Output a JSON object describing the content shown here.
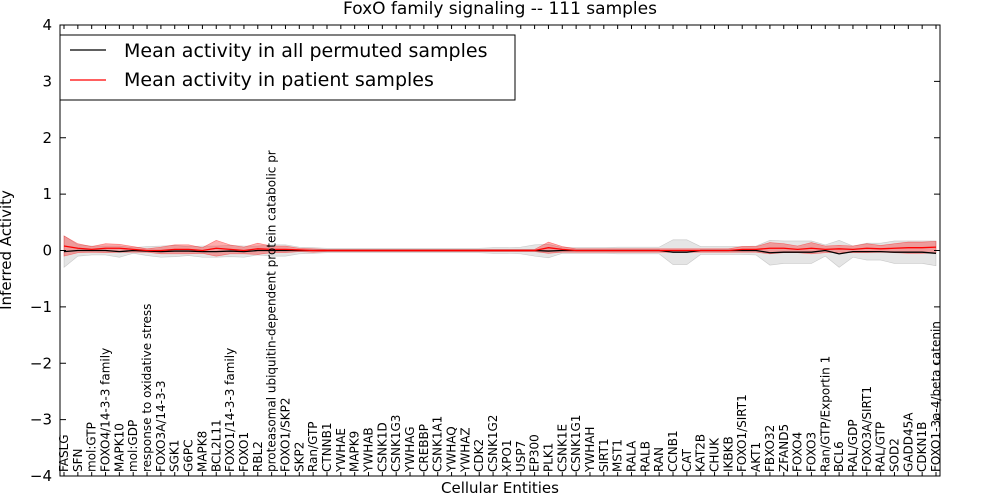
{
  "chart_data": {
    "type": "line",
    "title": "FoxO family signaling -- 111 samples",
    "xlabel": "Cellular Entities",
    "ylabel": "Inferred Activity",
    "ylim": [
      -4,
      4
    ],
    "yticks": [
      "−4",
      "−3",
      "−2",
      "−1",
      "0",
      "1",
      "2",
      "3",
      "4"
    ],
    "grid": false,
    "legend_position": "top-left",
    "categories": [
      "FASLG",
      "SFN",
      "mol:GTP",
      "FOXO4/14-3-3 family",
      "MAPK10",
      "mol:GDP",
      "response to oxidative stress",
      "FOXO3A/14-3-3",
      "SGK1",
      "G6PC",
      "MAPK8",
      "BCL2L11",
      "FOXO1/14-3-3 family",
      "FOXO1",
      "RBL2",
      "proteasomal ubiquitin-dependent protein catabolic pr",
      "FOXO1/SKP2",
      "SKP2",
      "Ran/GTP",
      "CTNNB1",
      "YWHAE",
      "MAPK9",
      "YWHAB",
      "CSNK1D",
      "CSNK1G3",
      "YWHAG",
      "CREBBP",
      "CSNK1A1",
      "YWHAQ",
      "YWHAZ",
      "CDK2",
      "CSNK1G2",
      "XPO1",
      "USP7",
      "EP300",
      "PLK1",
      "CSNK1E",
      "CSNK1G1",
      "YWHAH",
      "SIRT1",
      "MST1",
      "RALA",
      "RALB",
      "RAN",
      "CCNB1",
      "CAT",
      "KAT2B",
      "CHUK",
      "IKBKB",
      "FOXO1/SIRT1",
      "AKT1",
      "FBXO32",
      "ZFAND5",
      "FOXO4",
      "FOXO3",
      "Ran/GTP/Exportin 1",
      "BCL6",
      "RAL/GDP",
      "FOXO3A/SIRT1",
      "RAL/GTP",
      "SOD2",
      "GADD45A",
      "CDKN1B",
      "FOXO1-3a-4/beta catenin"
    ],
    "series": [
      {
        "name": "Mean activity in all permuted samples",
        "color": "#000000",
        "band_color": "#999999",
        "values": [
          -0.02,
          0.0,
          0.0,
          0.0,
          -0.02,
          0.0,
          -0.01,
          -0.02,
          -0.01,
          -0.01,
          -0.02,
          -0.02,
          -0.01,
          -0.02,
          0.0,
          0.0,
          0.0,
          0.0,
          0.0,
          0.0,
          0.0,
          0.0,
          0.0,
          0.0,
          0.0,
          0.0,
          0.0,
          0.0,
          0.0,
          0.0,
          0.0,
          0.0,
          0.0,
          0.0,
          0.0,
          -0.01,
          0.0,
          0.0,
          0.0,
          0.0,
          0.0,
          0.0,
          0.0,
          0.0,
          -0.03,
          -0.03,
          0.0,
          0.0,
          0.0,
          0.0,
          0.0,
          -0.04,
          -0.03,
          -0.03,
          -0.03,
          0.0,
          -0.06,
          -0.02,
          -0.02,
          -0.02,
          -0.03,
          -0.03,
          -0.03,
          -0.05
        ],
        "band_half_width": [
          0.28,
          0.1,
          0.08,
          0.08,
          0.1,
          0.05,
          0.08,
          0.1,
          0.1,
          0.08,
          0.1,
          0.1,
          0.1,
          0.1,
          0.08,
          0.1,
          0.1,
          0.06,
          0.05,
          0.04,
          0.04,
          0.04,
          0.04,
          0.04,
          0.04,
          0.04,
          0.04,
          0.04,
          0.04,
          0.04,
          0.04,
          0.05,
          0.05,
          0.06,
          0.1,
          0.12,
          0.05,
          0.05,
          0.05,
          0.05,
          0.06,
          0.06,
          0.06,
          0.06,
          0.22,
          0.22,
          0.07,
          0.07,
          0.07,
          0.07,
          0.08,
          0.22,
          0.2,
          0.2,
          0.2,
          0.1,
          0.24,
          0.1,
          0.15,
          0.15,
          0.2,
          0.2,
          0.2,
          0.22
        ]
      },
      {
        "name": "Mean activity in patient samples",
        "color": "#ff0000",
        "band_color": "#ff0000",
        "values": [
          0.08,
          0.04,
          0.02,
          0.04,
          0.04,
          0.02,
          0.0,
          0.0,
          0.02,
          0.02,
          0.0,
          0.04,
          0.02,
          0.0,
          0.03,
          0.02,
          0.02,
          0.01,
          0.0,
          0.0,
          0.0,
          0.0,
          0.0,
          0.0,
          0.0,
          0.0,
          0.0,
          0.0,
          0.0,
          0.0,
          0.0,
          0.0,
          0.0,
          0.0,
          0.0,
          0.05,
          0.02,
          0.0,
          0.0,
          0.0,
          0.0,
          0.0,
          0.0,
          0.0,
          0.0,
          0.0,
          0.0,
          0.0,
          0.0,
          0.02,
          0.02,
          0.04,
          0.04,
          0.02,
          0.04,
          0.02,
          0.03,
          0.02,
          0.04,
          0.03,
          0.04,
          0.05,
          0.05,
          0.06
        ],
        "band_half_width": [
          0.18,
          0.08,
          0.05,
          0.08,
          0.07,
          0.05,
          0.03,
          0.06,
          0.08,
          0.08,
          0.05,
          0.14,
          0.08,
          0.06,
          0.1,
          0.06,
          0.06,
          0.03,
          0.03,
          0.02,
          0.02,
          0.02,
          0.02,
          0.02,
          0.02,
          0.02,
          0.02,
          0.02,
          0.02,
          0.02,
          0.02,
          0.02,
          0.02,
          0.02,
          0.02,
          0.1,
          0.05,
          0.03,
          0.03,
          0.03,
          0.03,
          0.03,
          0.03,
          0.03,
          0.03,
          0.03,
          0.03,
          0.03,
          0.03,
          0.05,
          0.05,
          0.1,
          0.08,
          0.06,
          0.1,
          0.06,
          0.06,
          0.06,
          0.08,
          0.06,
          0.08,
          0.1,
          0.1,
          0.1
        ]
      }
    ]
  }
}
